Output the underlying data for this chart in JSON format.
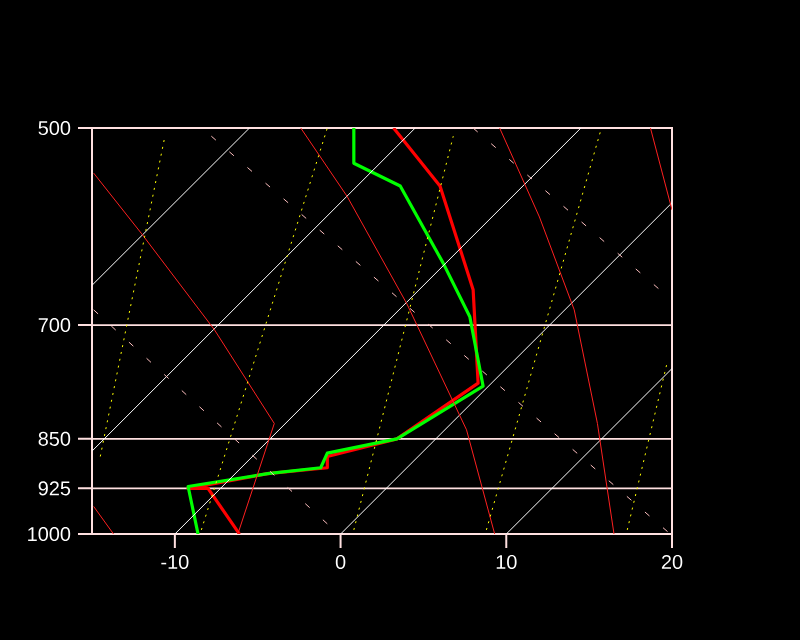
{
  "chart_data": {
    "type": "line",
    "log": "y",
    "grid": "y",
    "xlim": [
      -15,
      20
    ],
    "xticks": [
      -10,
      0,
      10,
      20
    ],
    "ylim": [
      1000,
      500
    ],
    "yticks": [
      500,
      700,
      850,
      925,
      1000
    ],
    "series": [
      {
        "color": "#ff0000",
        "x": [
          3.2,
          6.0,
          8.0,
          8.3,
          3.4,
          -0.8,
          -0.8,
          -4.4,
          -9.2,
          -8.0,
          -6.1
        ],
        "values": [
          500,
          552,
          659,
          773,
          850,
          876,
          893,
          902,
          925,
          925,
          1000
        ]
      },
      {
        "color": "#00ff00",
        "x": [
          0.8,
          0.8,
          3.6,
          6.2,
          7.8,
          8.6,
          3.4,
          -0.8,
          -1.2,
          -4.4,
          -9.2,
          -8.6
        ],
        "values": [
          500,
          531,
          552,
          630,
          690,
          777,
          850,
          871,
          893,
          902,
          922,
          1000
        ]
      },
      {
        "color": "#ffffff",
        "x": [
          -15,
          -5.5
        ],
        "values": [
          654,
          500
        ]
      },
      {
        "color": "#ffffff",
        "x": [
          -15,
          4.5
        ],
        "values": [
          868,
          500
        ]
      },
      {
        "color": "#ffffff",
        "x": [
          -10,
          14.5
        ],
        "values": [
          1000,
          500
        ]
      },
      {
        "color": "#ffffff",
        "x": [
          0,
          20
        ],
        "values": [
          1000,
          568
        ]
      },
      {
        "color": "#ffffff",
        "x": [
          10,
          20
        ],
        "values": [
          1000,
          754
        ]
      },
      {
        "color": "#ff2020",
        "x": [
          -14.9,
          -12.0,
          -7.6,
          -4.0,
          -6.2
        ],
        "values": [
          540,
          599,
          706,
          828,
          1000
        ]
      },
      {
        "color": "#ff2020",
        "x": [
          -2.4,
          0.4,
          4.0,
          7.6,
          9.3
        ],
        "values": [
          500,
          562,
          675,
          837,
          1000
        ]
      },
      {
        "color": "#ff2020",
        "x": [
          9.6,
          12.0,
          14.1,
          15.5,
          16.5
        ],
        "values": [
          500,
          582,
          682,
          828,
          1000
        ]
      },
      {
        "color": "#ff2020",
        "x": [
          18.7,
          20
        ],
        "values": [
          500,
          575
        ]
      },
      {
        "color": "#ff2020",
        "x": [
          -14.9,
          -13.7
        ],
        "values": [
          954,
          1000
        ]
      },
      {
        "color": "#ffff00",
        "line_style": "dotted",
        "x": [
          -14.5,
          -10.6
        ],
        "values": [
          876,
          507
        ]
      },
      {
        "color": "#ffff00",
        "line_style": "dotted",
        "x": [
          -8.4,
          -0.8
        ],
        "values": [
          993,
          500
        ]
      },
      {
        "color": "#ffff00",
        "line_style": "dotted",
        "x": [
          0.8,
          6.8
        ],
        "values": [
          993,
          507
        ]
      },
      {
        "color": "#ffff00",
        "line_style": "dotted",
        "x": [
          8.8,
          15.7
        ],
        "values": [
          993,
          502
        ]
      },
      {
        "color": "#ffff00",
        "line_style": "dotted",
        "x": [
          17.3,
          19.7
        ],
        "values": [
          993,
          747
        ]
      },
      {
        "color": "#ffc0c0",
        "line_style": "dashed",
        "x": [
          -7.8,
          19.9
        ],
        "values": [
          507,
          1000
        ]
      },
      {
        "color": "#ffc0c0",
        "line_style": "dashed",
        "x": [
          -14.9,
          -0.4
        ],
        "values": [
          682,
          993
        ]
      },
      {
        "color": "#ffc0c0",
        "line_style": "dashed",
        "x": [
          8.0,
          20
        ],
        "values": [
          500,
          671
        ]
      }
    ]
  }
}
